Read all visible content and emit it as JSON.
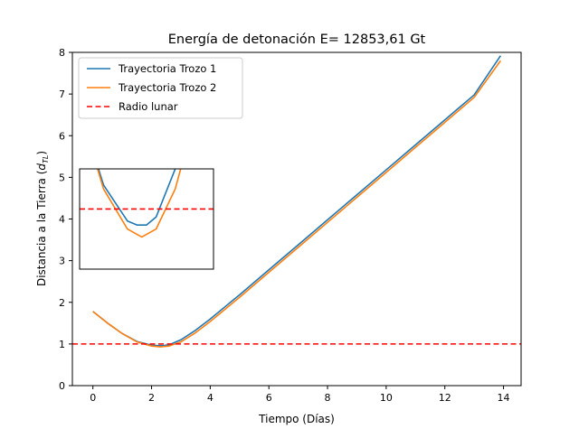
{
  "chart_data": {
    "type": "line",
    "title": "Energía de detonación E= 12853,61 Gt",
    "xlabel": "Tiempo (Días)",
    "ylabel_main": "Distancia a la Tierra (",
    "ylabel_math": "d",
    "ylabel_sub": "TL",
    "ylabel_close": ")",
    "xlim": [
      -0.7,
      14.6
    ],
    "ylim": [
      0,
      8
    ],
    "xticks": [
      0,
      2,
      4,
      6,
      8,
      10,
      12,
      14
    ],
    "yticks": [
      0,
      1,
      2,
      3,
      4,
      5,
      6,
      7,
      8
    ],
    "grid": false,
    "legend_position": "upper-left",
    "series": [
      {
        "name": "Trayectoria Trozo 1",
        "color": "#1f77b4",
        "x": [
          0,
          0.5,
          1,
          1.5,
          2,
          2.2,
          2.4,
          2.6,
          3,
          3.5,
          4,
          5,
          6,
          7,
          8,
          9,
          10,
          11,
          12,
          13,
          13.9
        ],
        "y": [
          1.78,
          1.5,
          1.25,
          1.06,
          0.97,
          0.96,
          0.96,
          0.98,
          1.1,
          1.33,
          1.6,
          2.18,
          2.78,
          3.38,
          3.98,
          4.58,
          5.18,
          5.78,
          6.38,
          6.98,
          7.92
        ]
      },
      {
        "name": "Trayectoria Trozo 2",
        "color": "#ff7f0e",
        "x": [
          0,
          0.5,
          1,
          1.5,
          2,
          2.3,
          2.6,
          3,
          3.5,
          4,
          5,
          6,
          7,
          8,
          9,
          10,
          11,
          12,
          13,
          13.9
        ],
        "y": [
          1.78,
          1.5,
          1.25,
          1.05,
          0.95,
          0.93,
          0.95,
          1.05,
          1.27,
          1.54,
          2.12,
          2.72,
          3.32,
          3.92,
          4.52,
          5.12,
          5.72,
          6.32,
          6.92,
          7.8
        ]
      },
      {
        "name": "Radio lunar",
        "color": "#ff0000",
        "dashed": true,
        "y_constant": 1
      }
    ],
    "inset": {
      "xlim": [
        1.0,
        3.8
      ],
      "ylim": [
        0.85,
        1.1
      ],
      "xticks": [],
      "yticks": []
    }
  }
}
